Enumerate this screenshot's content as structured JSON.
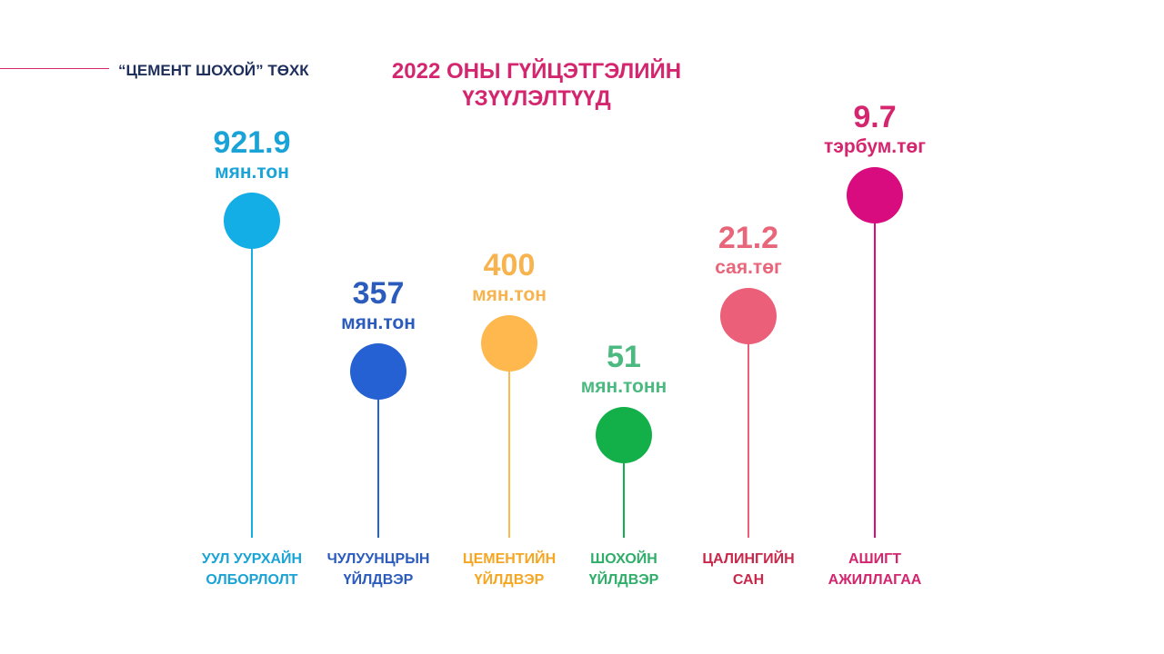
{
  "header": {
    "company": "“ЦЕМЕНТ ШОХОЙ” ТӨХК",
    "title_line1": "2022 ОНЫ ГҮЙЦЭТГЭЛИЙН",
    "title_line2": "ҮЗҮҮЛЭЛТҮҮД",
    "accent_color": "#d4256f"
  },
  "chart_data": {
    "type": "lollipop",
    "items": [
      {
        "value": "921.9",
        "unit": "мян.тон",
        "category_line1": "УУЛ УУРХАЙН",
        "category_line2": "ОЛБОРЛОЛТ",
        "color": "#13aee6",
        "label_color": "#1aa3d6",
        "cat_color": "#1aa3d6"
      },
      {
        "value": "357",
        "unit": "мян.тон",
        "category_line1": "ЧУЛУУНЦРЫН",
        "category_line2": "ҮЙЛДВЭР",
        "color": "#2561d3",
        "label_color": "#2a5bbd",
        "cat_color": "#2a5bbd"
      },
      {
        "value": "400",
        "unit": "мян.тон",
        "category_line1": "ЦЕМЕНТИЙН",
        "category_line2": "ҮЙЛДВЭР",
        "color": "#ffb84d",
        "label_color": "#f7b34d",
        "cat_color": "#f5a623"
      },
      {
        "value": "51",
        "unit": "мян.тонн",
        "category_line1": "ШОХОЙН",
        "category_line2": "ҮЙЛДВЭР",
        "color": "#13b04a",
        "label_color": "#4cba80",
        "cat_color": "#2fae6a"
      },
      {
        "value": "21.2",
        "unit": "сая.төг",
        "category_line1": "ЦАЛИНГИЙН",
        "category_line2": "САН",
        "color": "#ec5f78",
        "label_color": "#e8657a",
        "cat_color": "#c8284a"
      },
      {
        "value": "9.7",
        "unit": "тэрбум.төг",
        "category_line1": "АШИГТ",
        "category_line2": "АЖИЛЛАГАА",
        "color": "#d80c7e",
        "label_color": "#d4256f",
        "cat_color": "#d4256f"
      }
    ]
  }
}
